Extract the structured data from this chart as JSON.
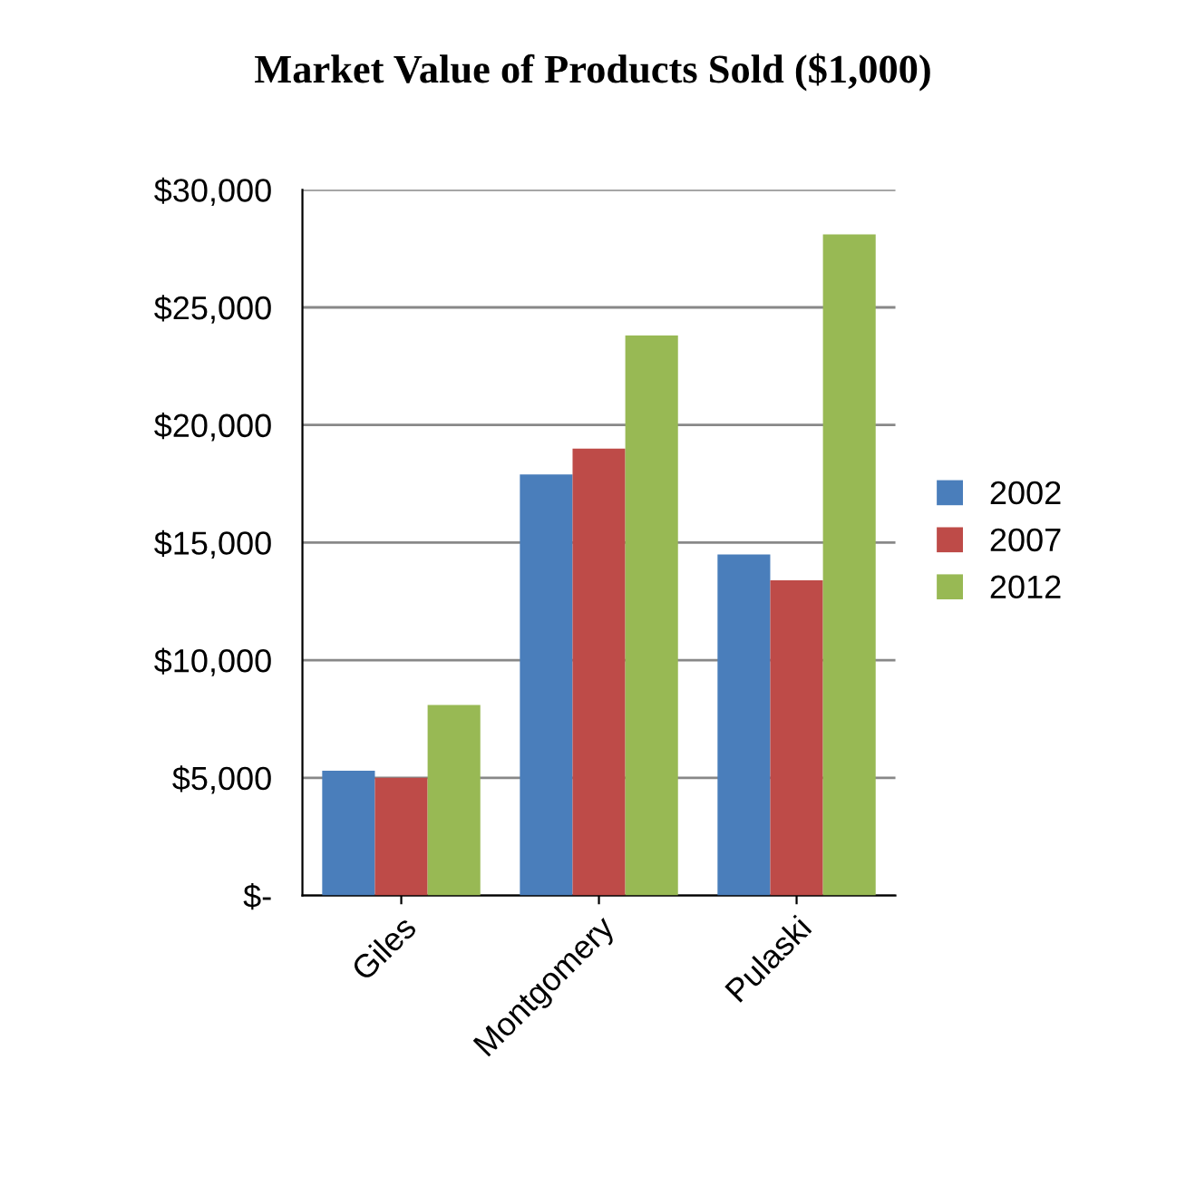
{
  "chart_data": {
    "type": "bar",
    "title": "Market Value of Products Sold ($1,000)",
    "categories": [
      "Giles",
      "Montgomery",
      "Pulaski"
    ],
    "series": [
      {
        "name": "2002",
        "color": "#4a7ebb",
        "values": [
          5300,
          17900,
          14500
        ]
      },
      {
        "name": "2007",
        "color": "#be4b48",
        "values": [
          5000,
          19000,
          13400
        ]
      },
      {
        "name": "2012",
        "color": "#98b954",
        "values": [
          8100,
          23800,
          28100
        ]
      }
    ],
    "ylim": [
      0,
      30000
    ],
    "yticks": [
      {
        "value": 0,
        "label": "$-"
      },
      {
        "value": 5000,
        "label": "$5,000"
      },
      {
        "value": 10000,
        "label": "$10,000"
      },
      {
        "value": 15000,
        "label": "$15,000"
      },
      {
        "value": 20000,
        "label": "$20,000"
      },
      {
        "value": 25000,
        "label": "$25,000"
      },
      {
        "value": 30000,
        "label": "$30,000"
      }
    ],
    "grid": "y",
    "legend": "right"
  }
}
